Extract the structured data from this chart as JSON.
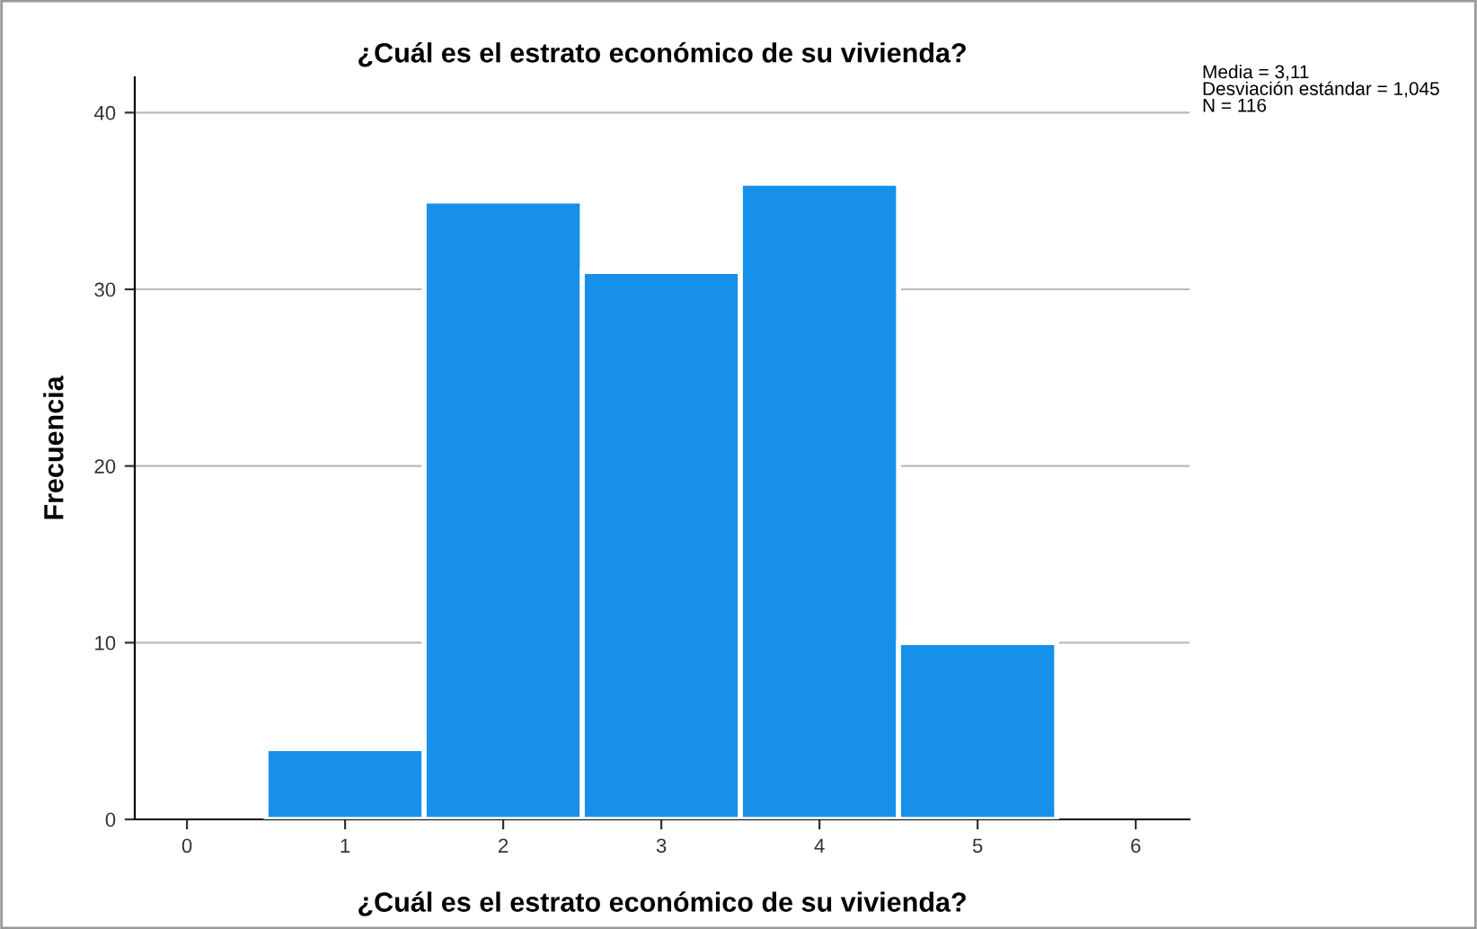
{
  "chart_data": {
    "type": "histogram",
    "title": "¿Cuál es el estrato económico de su vivienda?",
    "xlabel": "¿Cuál es el estrato económico de su vivienda?",
    "ylabel": "Frecuencia",
    "bins": [
      0.5,
      1.5,
      2.5,
      3.5,
      4.5,
      5.5
    ],
    "values": [
      4,
      35,
      31,
      36,
      10
    ],
    "color": "#1690e8",
    "xlim": [
      -0.33,
      6.34
    ],
    "xticks": [
      0,
      1,
      2,
      3,
      4,
      5,
      6
    ],
    "ylim": [
      0,
      42
    ],
    "yticks": [
      0,
      10,
      20,
      30,
      40
    ],
    "grid": "y",
    "annotations": [
      "Media = 3,11\nDesviación estándar = 1,045\nN = 116"
    ]
  }
}
